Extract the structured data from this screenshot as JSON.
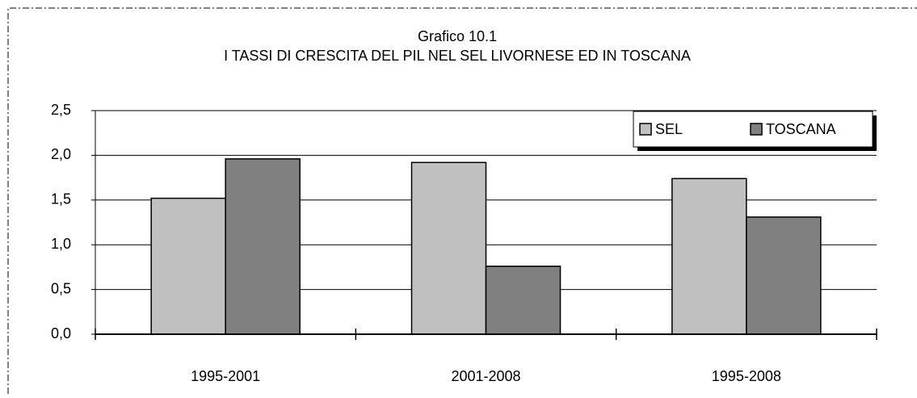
{
  "chart_data": {
    "type": "bar",
    "title": "Grafico 10.1",
    "subtitle": "I TASSI DI CRESCITA DEL PIL NEL SEL LIVORNESE ED IN TOSCANA",
    "categories": [
      "1995-2001",
      "2001-2008",
      "1995-2008"
    ],
    "series": [
      {
        "name": "SEL",
        "color": "#c0c0c0",
        "values": [
          1.52,
          1.92,
          1.74
        ]
      },
      {
        "name": "TOSCANA",
        "color": "#808080",
        "values": [
          1.96,
          0.76,
          1.31
        ]
      }
    ],
    "ylim": [
      0,
      2.5
    ],
    "yticks": [
      {
        "value": 0,
        "label": "0,0"
      },
      {
        "value": 0.5,
        "label": "0,5"
      },
      {
        "value": 1,
        "label": "1,0"
      },
      {
        "value": 1.5,
        "label": "1,5"
      },
      {
        "value": 2,
        "label": "2,0"
      },
      {
        "value": 2.5,
        "label": "2,5"
      }
    ],
    "grid": true,
    "legend": "upper right"
  }
}
